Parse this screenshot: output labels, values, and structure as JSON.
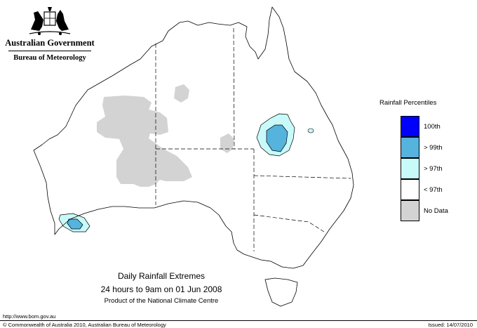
{
  "logo": {
    "government": "Australian Government",
    "bureau": "Bureau of Meteorology"
  },
  "legend": {
    "title": "Rainfall Percentiles",
    "items": [
      {
        "label": "100th",
        "color": "#0000ff"
      },
      {
        "label": "> 99th",
        "color": "#55b3de"
      },
      {
        "label": "> 97th",
        "color": "#c9fafa"
      },
      {
        "label": "< 97th",
        "color": "#ffffff"
      },
      {
        "label": "No Data",
        "color": "#d3d3d3"
      }
    ]
  },
  "caption": {
    "line1": "Daily Rainfall Extremes",
    "line2": "24 hours to 9am on 01 Jun 2008",
    "line3": "Product of the National Climate Centre"
  },
  "footer": {
    "url": "http://www.bom.gov.au",
    "copyright": "© Commonwealth of Australia 2010, Australian Bureau of Meteorology",
    "issued": "Issued: 14/07/2010"
  }
}
